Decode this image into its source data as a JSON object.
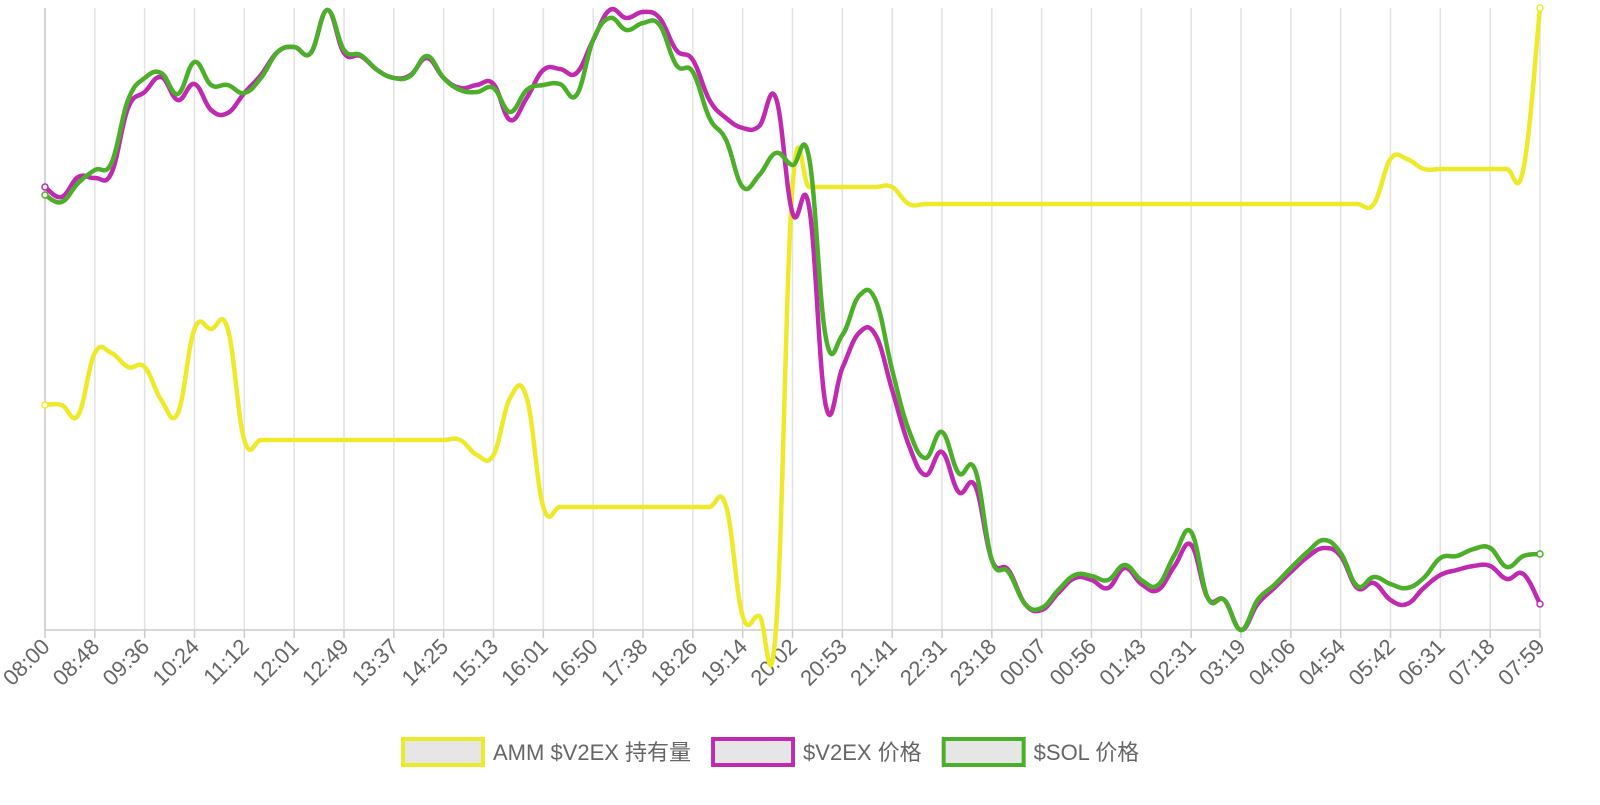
{
  "chart_data": {
    "type": "line",
    "categories": [
      "08:00",
      null,
      null,
      "08:48",
      null,
      null,
      "09:36",
      null,
      null,
      "10:24",
      null,
      null,
      "11:12",
      null,
      null,
      "12:01",
      null,
      null,
      "12:49",
      null,
      null,
      "13:37",
      null,
      null,
      "14:25",
      null,
      null,
      "15:13",
      null,
      null,
      "16:01",
      null,
      null,
      "16:50",
      null,
      null,
      "17:38",
      null,
      null,
      "18:26",
      null,
      null,
      "19:14",
      null,
      null,
      "20:02",
      null,
      null,
      "20:53",
      null,
      null,
      "21:41",
      null,
      null,
      "22:31",
      null,
      null,
      "23:18",
      null,
      null,
      "00:07",
      null,
      null,
      "00:56",
      null,
      null,
      "01:43",
      null,
      null,
      "02:31",
      null,
      null,
      "03:19",
      null,
      null,
      "04:06",
      null,
      null,
      "04:54",
      null,
      null,
      "05:42",
      null,
      null,
      "06:31",
      null,
      null,
      "07:18",
      null,
      null,
      "07:59"
    ],
    "ylim": [
      0,
      622
    ],
    "grid": true,
    "legend": "bottom",
    "series": [
      {
        "name": "AMM $V2EX 持有量",
        "color": "#eeea2a",
        "values": [
          225,
          225,
          215,
          277,
          277,
          263,
          263,
          230,
          217,
          301,
          301,
          301,
          190,
          190,
          190,
          190,
          190,
          190,
          190,
          190,
          190,
          190,
          190,
          190,
          190,
          190,
          175,
          175,
          232,
          232,
          123,
          123,
          123,
          123,
          123,
          123,
          123,
          123,
          123,
          123,
          123,
          124,
          14,
          14,
          0,
          443,
          443,
          443,
          443,
          443,
          443,
          443,
          426,
          426,
          426,
          426,
          426,
          426,
          426,
          426,
          426,
          426,
          426,
          426,
          426,
          426,
          426,
          426,
          426,
          426,
          426,
          426,
          426,
          426,
          426,
          426,
          426,
          426,
          426,
          426,
          426,
          471,
          471,
          461,
          461,
          461,
          461,
          461,
          461,
          461,
          622
        ]
      },
      {
        "name": "$V2EX 价格",
        "color": "#c02ab0",
        "values": [
          443,
          433,
          453,
          452,
          457,
          522,
          538,
          553,
          530,
          546,
          520,
          517,
          537,
          555,
          578,
          583,
          577,
          620,
          577,
          574,
          560,
          552,
          555,
          572,
          552,
          542,
          545,
          546,
          510,
          532,
          560,
          561,
          557,
          590,
          620,
          612,
          618,
          612,
          580,
          570,
          530,
          512,
          502,
          504,
          532,
          417,
          423,
          225,
          262,
          297,
          295,
          240,
          185,
          155,
          178,
          138,
          144,
          70,
          60,
          26,
          20,
          37,
          52,
          50,
          42,
          62,
          46,
          40,
          64,
          85,
          32,
          30,
          0,
          26,
          42,
          58,
          73,
          82,
          74,
          42,
          47,
          30,
          26,
          42,
          55,
          60,
          64,
          64,
          51,
          56,
          26
        ]
      },
      {
        "name": "$SOL 价格",
        "color": "#4caf2a",
        "values": [
          435,
          428,
          447,
          460,
          467,
          530,
          552,
          557,
          536,
          568,
          545,
          545,
          537,
          552,
          578,
          583,
          577,
          620,
          580,
          575,
          560,
          552,
          554,
          574,
          552,
          540,
          538,
          542,
          518,
          540,
          545,
          546,
          535,
          590,
          612,
          600,
          607,
          605,
          565,
          558,
          512,
          490,
          443,
          455,
          477,
          465,
          472,
          293,
          295,
          334,
          330,
          260,
          200,
          172,
          198,
          157,
          160,
          70,
          58,
          26,
          22,
          40,
          55,
          54,
          50,
          65,
          50,
          45,
          75,
          98,
          32,
          30,
          0,
          30,
          45,
          62,
          78,
          90,
          77,
          44,
          53,
          46,
          42,
          52,
          72,
          74,
          81,
          82,
          63,
          74,
          76
        ]
      }
    ]
  }
}
